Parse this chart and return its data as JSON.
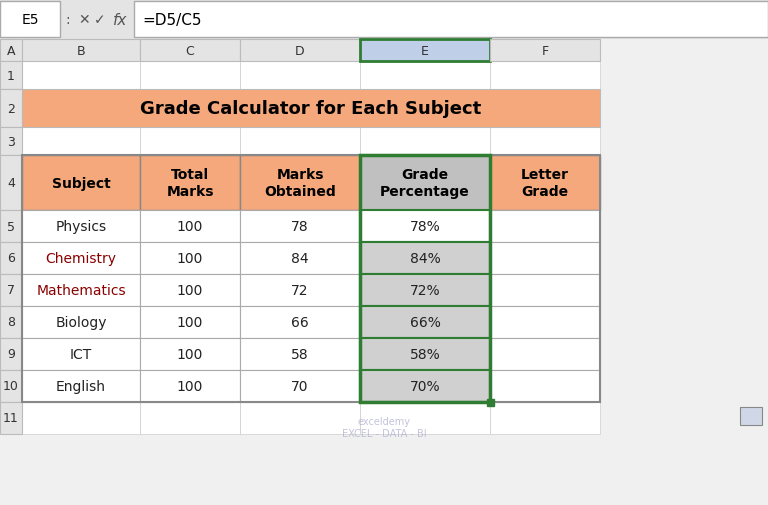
{
  "title": "Grade Calculator for Each Subject",
  "title_bg": "#F4A87C",
  "headers": [
    "Subject",
    "Total\nMarks",
    "Marks\nObtained",
    "Grade\nPercentage",
    "Letter\nGrade"
  ],
  "header_bg": "#F4A87C",
  "rows": [
    [
      "Physics",
      "100",
      "78",
      "78%",
      ""
    ],
    [
      "Chemistry",
      "100",
      "84",
      "84%",
      ""
    ],
    [
      "Mathematics",
      "100",
      "72",
      "72%",
      ""
    ],
    [
      "Biology",
      "100",
      "66",
      "66%",
      ""
    ],
    [
      "ICT",
      "100",
      "58",
      "58%",
      ""
    ],
    [
      "English",
      "100",
      "70",
      "70%",
      ""
    ]
  ],
  "col_colors": [
    "#F4A87C",
    "#FFFFFF",
    "#FFFFFF",
    "#C0C0C0",
    "#FFFFFF"
  ],
  "selected_col": 3,
  "selected_cell_row": 0,
  "selected_col_header_bg": "#C0C0C0",
  "excel_bg": "#F0F0F0",
  "cell_bg": "#FFFFFF",
  "grid_color": "#BBBBBB",
  "formula_bar_text": "=D5/C5",
  "cell_ref": "E5",
  "col_headers": [
    "A",
    "B",
    "C",
    "D",
    "E",
    "F"
  ],
  "row_numbers": [
    "1",
    "2",
    "3",
    "4",
    "5",
    "6",
    "7",
    "8",
    "9",
    "10",
    "11"
  ],
  "watermark": "exceldemy\nEXCEL - DATA - BI",
  "subject_text_color": "#8B0000"
}
